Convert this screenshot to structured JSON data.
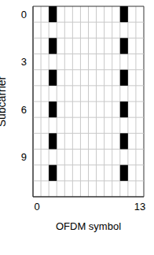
{
  "chart_data": {
    "type": "grid",
    "x_label": "OFDM symbol",
    "y_label": "Subcarrier",
    "xlim": [
      -0.5,
      13.5
    ],
    "xticks": [
      0,
      13
    ],
    "ylim": [
      -0.5,
      11.5
    ],
    "yticks": [
      0,
      3,
      6,
      9
    ],
    "grid": true,
    "color": "#000000",
    "cells": {
      "x": [
        2,
        2,
        2,
        2,
        2,
        2,
        11,
        11,
        11,
        11,
        11,
        11
      ],
      "y": [
        0,
        2,
        4,
        6,
        8,
        10,
        0,
        2,
        4,
        6,
        8,
        10
      ]
    }
  }
}
